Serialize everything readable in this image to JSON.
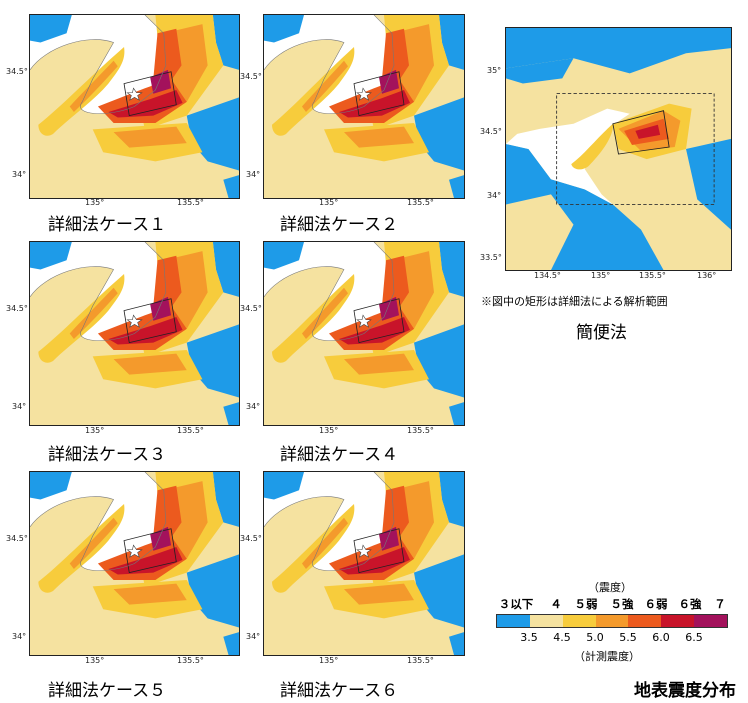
{
  "panels": [
    {
      "caption": "詳細法ケース１",
      "ticks": {
        "lat_upper": "34.5°",
        "lat_lower": "34°",
        "lon_left": "135°",
        "lon_right": "135.5°"
      }
    },
    {
      "caption": "詳細法ケース２",
      "ticks": {
        "lat_upper": "34.5°",
        "lat_lower": "34°",
        "lon_left": "135°",
        "lon_right": "135.5°"
      }
    },
    {
      "caption": "詳細法ケース３",
      "ticks": {
        "lat_upper": "34.5°",
        "lat_lower": "34°",
        "lon_left": "135°",
        "lon_right": "135.5°"
      }
    },
    {
      "caption": "詳細法ケース４",
      "ticks": {
        "lat_upper": "34.5°",
        "lat_lower": "34°",
        "lon_left": "135°",
        "lon_right": "135.5°"
      }
    },
    {
      "caption": "詳細法ケース５",
      "ticks": {
        "lat_upper": "34.5°",
        "lat_lower": "34°",
        "lon_left": "135°",
        "lon_right": "135.5°"
      }
    },
    {
      "caption": "詳細法ケース６",
      "ticks": {
        "lat_upper": "34.5°",
        "lat_lower": "34°",
        "lon_left": "135°",
        "lon_right": "135.5°"
      }
    }
  ],
  "overview": {
    "caption": "簡便法",
    "note": "※図中の矩形は詳細法による解析範囲",
    "ticks": {
      "lat": [
        "35°",
        "34.5°",
        "34°",
        "33.5°"
      ],
      "lon": [
        "134.5°",
        "135°",
        "135.5°",
        "136°"
      ]
    }
  },
  "legend": {
    "top_title": "（震度）",
    "classes": [
      "３以下",
      "４",
      "５弱",
      "５強",
      "６弱",
      "６強",
      "７"
    ],
    "values": [
      "3.5",
      "4.5",
      "5.0",
      "5.5",
      "6.0",
      "6.5"
    ],
    "bottom_title": "（計測震度）",
    "colors": [
      "#1e9be8",
      "#f5e2a0",
      "#f7cc3c",
      "#f49a2c",
      "#ec5a1e",
      "#c8142a",
      "#a3125c"
    ]
  },
  "main_title": "地表震度分布"
}
